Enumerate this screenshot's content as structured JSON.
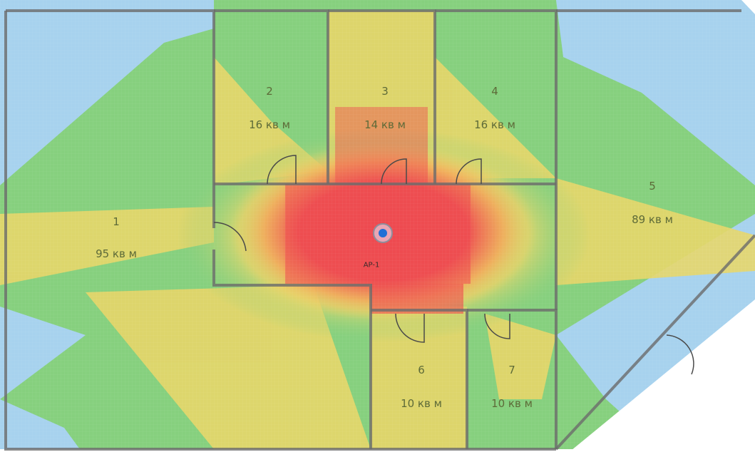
{
  "rooms": [
    {
      "id": "1",
      "number": "1",
      "area": "95 кв м"
    },
    {
      "id": "2",
      "number": "2",
      "area": "16 кв м"
    },
    {
      "id": "3",
      "number": "3",
      "area": "14 кв м"
    },
    {
      "id": "4",
      "number": "4",
      "area": "16 кв м"
    },
    {
      "id": "5",
      "number": "5",
      "area": "89 кв м"
    },
    {
      "id": "6",
      "number": "6",
      "area": "10 кв м"
    },
    {
      "id": "7",
      "number": "7",
      "area": "10 кв м"
    }
  ],
  "access_point": {
    "label": "AP-1"
  },
  "colors": {
    "strong": "#ee4a50",
    "good": "#f3a85a",
    "medium": "#e7d66a",
    "weak": "#86d07e",
    "very_weak": "#a7d2ee",
    "wall": "#6b6b6b",
    "ap_ring": "#e9a6b4",
    "ap_dot": "#1f6fd6"
  }
}
